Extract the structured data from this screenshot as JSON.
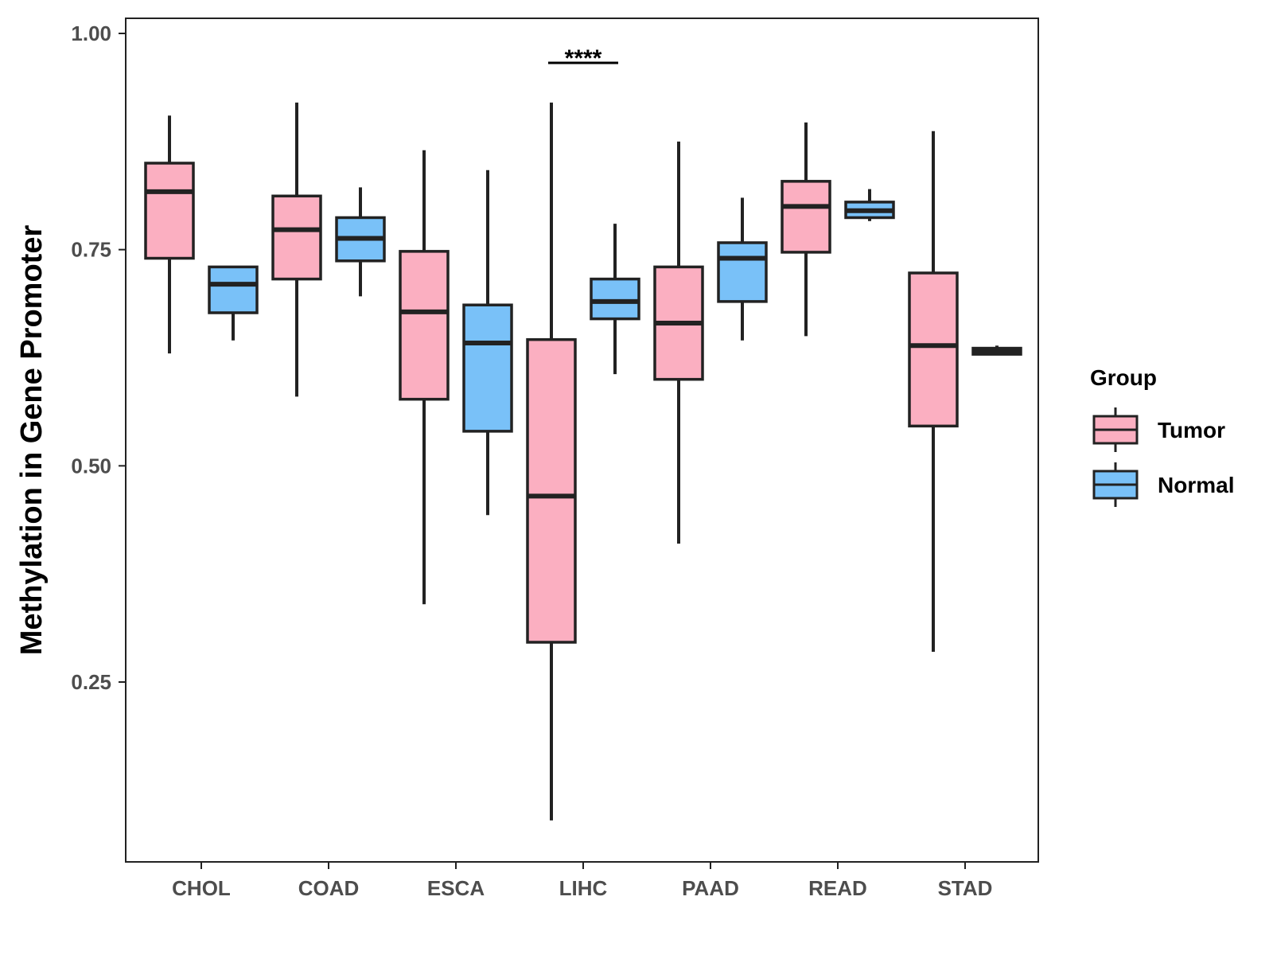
{
  "chart_data": {
    "type": "boxplot",
    "title": "",
    "xlabel": "",
    "ylabel": "Methylation in Gene Promoter",
    "ylim": [
      0.045,
      1.018
    ],
    "y_ticks": [
      0.25,
      0.5,
      0.75,
      1.0
    ],
    "y_tick_labels": [
      "0.25",
      "0.50",
      "0.75",
      "1.00"
    ],
    "categories": [
      "CHOL",
      "COAD",
      "ESCA",
      "LIHC",
      "PAAD",
      "READ",
      "STAD"
    ],
    "legend": {
      "title": "Group",
      "position": "right",
      "items": [
        {
          "name": "Tumor",
          "color": "#FBAFC1"
        },
        {
          "name": "Normal",
          "color": "#79C1F8"
        }
      ]
    },
    "series": [
      {
        "name": "Tumor",
        "color": "#FBAFC1",
        "boxes": [
          {
            "min": 0.63,
            "q1": 0.74,
            "median": 0.817,
            "q3": 0.85,
            "max": 0.905
          },
          {
            "min": 0.58,
            "q1": 0.716,
            "median": 0.773,
            "q3": 0.812,
            "max": 0.92
          },
          {
            "min": 0.34,
            "q1": 0.577,
            "median": 0.678,
            "q3": 0.748,
            "max": 0.865
          },
          {
            "min": 0.09,
            "q1": 0.296,
            "median": 0.465,
            "q3": 0.646,
            "max": 0.92
          },
          {
            "min": 0.41,
            "q1": 0.6,
            "median": 0.665,
            "q3": 0.73,
            "max": 0.875
          },
          {
            "min": 0.65,
            "q1": 0.747,
            "median": 0.8,
            "q3": 0.829,
            "max": 0.897
          },
          {
            "min": 0.285,
            "q1": 0.546,
            "median": 0.639,
            "q3": 0.723,
            "max": 0.887
          }
        ]
      },
      {
        "name": "Normal",
        "color": "#79C1F8",
        "boxes": [
          {
            "min": 0.645,
            "q1": 0.677,
            "median": 0.71,
            "q3": 0.73,
            "max": 0.73
          },
          {
            "min": 0.696,
            "q1": 0.737,
            "median": 0.763,
            "q3": 0.787,
            "max": 0.822
          },
          {
            "min": 0.443,
            "q1": 0.54,
            "median": 0.642,
            "q3": 0.686,
            "max": 0.842
          },
          {
            "min": 0.606,
            "q1": 0.67,
            "median": 0.69,
            "q3": 0.716,
            "max": 0.78
          },
          {
            "min": 0.645,
            "q1": 0.69,
            "median": 0.74,
            "q3": 0.758,
            "max": 0.81
          },
          {
            "min": 0.783,
            "q1": 0.787,
            "median": 0.795,
            "q3": 0.805,
            "max": 0.82
          },
          {
            "min": 0.628,
            "q1": 0.629,
            "median": 0.632,
            "q3": 0.636,
            "max": 0.639
          }
        ]
      }
    ],
    "annotations": [
      {
        "category": "LIHC",
        "text": "****",
        "y": 0.966
      }
    ]
  }
}
